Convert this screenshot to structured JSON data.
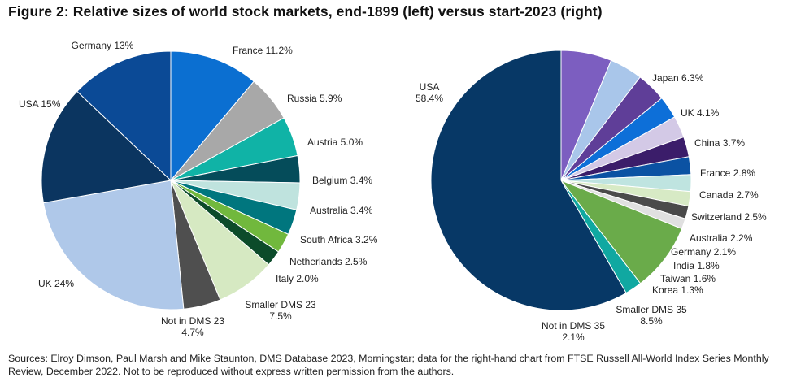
{
  "title": "Figure 2: Relative sizes of world stock markets, end-1899 (left) versus start-2023 (right)",
  "source_note": "Sources: Elroy Dimson, Paul Marsh and Mike Staunton, DMS Database 2023, Morningstar; data for the right-hand chart from FTSE Russell All-World Index Series Monthly Review, December 2022. Not to be reproduced without express written permission from the authors.",
  "chart_data": [
    {
      "type": "pie",
      "title": "end-1899",
      "start": "12 o'clock",
      "direction": "clockwise",
      "slices": [
        {
          "label": "France",
          "value": 11.2,
          "text": [
            "France 11.2%"
          ],
          "color": "#0b6fd1"
        },
        {
          "label": "Russia",
          "value": 5.9,
          "text": [
            "Russia 5.9%"
          ],
          "color": "#a8a8a8"
        },
        {
          "label": "Austria",
          "value": 5.0,
          "text": [
            "Austria 5.0%"
          ],
          "color": "#10b3a6"
        },
        {
          "label": "Belgium",
          "value": 3.4,
          "text": [
            "Belgium 3.4%"
          ],
          "color": "#054c5a"
        },
        {
          "label": "Australia",
          "value": 3.4,
          "text": [
            "Australia 3.4%"
          ],
          "color": "#bfe3de"
        },
        {
          "label": "South Africa",
          "value": 3.2,
          "text": [
            "South Africa 3.2%"
          ],
          "color": "#00767e"
        },
        {
          "label": "Netherlands",
          "value": 2.5,
          "text": [
            "Netherlands 2.5%"
          ],
          "color": "#71b83d"
        },
        {
          "label": "Italy",
          "value": 2.0,
          "text": [
            "Italy 2.0%"
          ],
          "color": "#0c4b2a"
        },
        {
          "label": "Smaller DMS 23",
          "value": 7.5,
          "text": [
            "Smaller DMS 23",
            "7.5%"
          ],
          "color": "#d6e9c2"
        },
        {
          "label": "Not in DMS 23",
          "value": 4.7,
          "text": [
            "Not in DMS 23",
            "4.7%"
          ],
          "color": "#4f4f4f"
        },
        {
          "label": "UK",
          "value": 24,
          "text": [
            "UK 24%"
          ],
          "color": "#afc8e9"
        },
        {
          "label": "USA",
          "value": 15,
          "text": [
            "USA 15%"
          ],
          "color": "#0b3560"
        },
        {
          "label": "Germany",
          "value": 13,
          "text": [
            "Germany 13%"
          ],
          "color": "#0b4a96"
        }
      ]
    },
    {
      "type": "pie",
      "title": "start-2023",
      "start": "12 o'clock",
      "direction": "clockwise",
      "slices": [
        {
          "label": "Japan",
          "value": 6.3,
          "text": [
            "Japan 6.3%"
          ],
          "color": "#7c5ec0"
        },
        {
          "label": "UK",
          "value": 4.1,
          "text": [
            "UK 4.1%"
          ],
          "color": "#a9c6ea"
        },
        {
          "label": "China",
          "value": 3.7,
          "text": [
            "China 3.7%"
          ],
          "color": "#5f3e98"
        },
        {
          "label": "France",
          "value": 2.8,
          "text": [
            "France 2.8%"
          ],
          "color": "#0d6fd8"
        },
        {
          "label": "Canada",
          "value": 2.7,
          "text": [
            "Canada 2.7%"
          ],
          "color": "#d3c9e6"
        },
        {
          "label": "Switzerland",
          "value": 2.5,
          "text": [
            "Switzerland 2.5%"
          ],
          "color": "#3b1d6a"
        },
        {
          "label": "Australia",
          "value": 2.2,
          "text": [
            "Australia 2.2%"
          ],
          "color": "#0b52a3"
        },
        {
          "label": "Germany",
          "value": 2.1,
          "text": [
            "Germany 2.1%"
          ],
          "color": "#bfe4e0"
        },
        {
          "label": "India",
          "value": 1.8,
          "text": [
            "India 1.8%"
          ],
          "color": "#d7eac5"
        },
        {
          "label": "Taiwan",
          "value": 1.6,
          "text": [
            "Taiwan 1.6%"
          ],
          "color": "#4a4a4a"
        },
        {
          "label": "Korea",
          "value": 1.3,
          "text": [
            "Korea 1.3%"
          ],
          "color": "#e0e0e0"
        },
        {
          "label": "Smaller DMS 35",
          "value": 8.5,
          "text": [
            "Smaller DMS 35",
            "8.5%"
          ],
          "color": "#6aab4a"
        },
        {
          "label": "Not in DMS 35",
          "value": 2.1,
          "text": [
            "Not in DMS 35",
            "2.1%"
          ],
          "color": "#10a8a1"
        },
        {
          "label": "USA",
          "value": 58.4,
          "text": [
            "USA",
            "58.4%"
          ],
          "color": "#073866"
        }
      ]
    }
  ]
}
